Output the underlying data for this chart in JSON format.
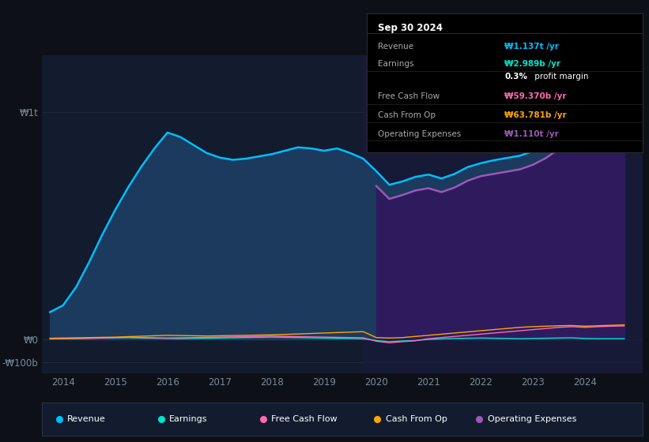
{
  "bg_color": "#0d1117",
  "plot_bg_color": "#131c2e",
  "title": "Sep 30 2024",
  "info_box": {
    "title": "Sep 30 2024",
    "rows": [
      {
        "label": "Revenue",
        "value": "₩1.137t /yr",
        "value_color": "#00bfff"
      },
      {
        "label": "Earnings",
        "value": "₩2.989b /yr",
        "value_color": "#00e5cc"
      },
      {
        "label": "",
        "value": "0.3% profit margin",
        "value_color": "#ffffff",
        "bold_part": "0.3%"
      },
      {
        "label": "Free Cash Flow",
        "value": "₩59.370b /yr",
        "value_color": "#ff69b4"
      },
      {
        "label": "Cash From Op",
        "value": "₩63.781b /yr",
        "value_color": "#ffa500"
      },
      {
        "label": "Operating Expenses",
        "value": "₩1.110t /yr",
        "value_color": "#9b59b6"
      }
    ]
  },
  "x_years": [
    2013.75,
    2014.0,
    2014.25,
    2014.5,
    2014.75,
    2015.0,
    2015.25,
    2015.5,
    2015.75,
    2016.0,
    2016.25,
    2016.5,
    2016.75,
    2017.0,
    2017.25,
    2017.5,
    2017.75,
    2018.0,
    2018.25,
    2018.5,
    2018.75,
    2019.0,
    2019.25,
    2019.5,
    2019.75,
    2020.0,
    2020.25,
    2020.5,
    2020.75,
    2021.0,
    2021.25,
    2021.5,
    2021.75,
    2022.0,
    2022.25,
    2022.5,
    2022.75,
    2023.0,
    2023.25,
    2023.5,
    2023.75,
    2024.0,
    2024.25,
    2024.5,
    2024.75
  ],
  "revenue": [
    120,
    150,
    230,
    340,
    460,
    570,
    670,
    760,
    840,
    910,
    890,
    855,
    820,
    800,
    790,
    795,
    805,
    815,
    830,
    845,
    840,
    830,
    840,
    820,
    795,
    740,
    680,
    695,
    715,
    725,
    708,
    728,
    758,
    775,
    788,
    798,
    808,
    828,
    858,
    898,
    948,
    998,
    1048,
    1100,
    1137
  ],
  "operating_expenses": [
    0,
    0,
    0,
    0,
    0,
    0,
    0,
    0,
    0,
    0,
    0,
    0,
    0,
    0,
    0,
    0,
    0,
    0,
    0,
    0,
    0,
    0,
    0,
    0,
    0,
    675,
    618,
    635,
    655,
    665,
    648,
    668,
    698,
    718,
    728,
    738,
    748,
    768,
    798,
    838,
    888,
    938,
    983,
    1028,
    1110
  ],
  "earnings": [
    4,
    3,
    4,
    5,
    6,
    7,
    8,
    6,
    5,
    4,
    3,
    4,
    5,
    6,
    7,
    8,
    9,
    10,
    9,
    8,
    7,
    6,
    5,
    4,
    3,
    -5,
    -10,
    -7,
    -5,
    0,
    2,
    4,
    5,
    6,
    5,
    4,
    3,
    4,
    5,
    6,
    7,
    4,
    3,
    3,
    3
  ],
  "free_cash_flow": [
    2,
    3,
    4,
    5,
    6,
    8,
    9,
    8,
    7,
    6,
    7,
    8,
    9,
    10,
    11,
    12,
    13,
    14,
    13,
    12,
    11,
    10,
    9,
    8,
    7,
    -8,
    -15,
    -10,
    -6,
    3,
    8,
    13,
    18,
    23,
    28,
    33,
    38,
    43,
    48,
    53,
    56,
    53,
    56,
    58,
    59
  ],
  "cash_from_op": [
    5,
    6,
    7,
    8,
    9,
    10,
    12,
    14,
    16,
    18,
    17,
    16,
    15,
    16,
    17,
    18,
    19,
    20,
    22,
    24,
    26,
    28,
    30,
    32,
    34,
    8,
    6,
    8,
    13,
    18,
    23,
    28,
    33,
    38,
    43,
    48,
    53,
    56,
    58,
    60,
    61,
    58,
    60,
    62,
    64
  ],
  "y_ticks_vals": [
    -100,
    0,
    1000
  ],
  "y_ticks_labels": [
    "-₩100b",
    "₩0",
    "₩1t"
  ],
  "ylim": [
    -150,
    1250
  ],
  "xlim_start": 2013.6,
  "xlim_end": 2025.1,
  "highlight_start": 2019.75,
  "revenue_color": "#00bfff",
  "revenue_fill": "#1b3a5e",
  "operating_expenses_color": "#9b59b6",
  "operating_expenses_fill": "#2d1b5e",
  "highlight_overlay": "#1a1a3a",
  "earnings_color": "#00e5cc",
  "free_cash_flow_color": "#ff69b4",
  "cash_from_op_color": "#ffa500",
  "grid_color": "#253040",
  "axis_label_color": "#7a8a9a",
  "legend_bg": "#131c2e",
  "legend_border": "#2a3a4a",
  "xticks": [
    2014,
    2015,
    2016,
    2017,
    2018,
    2019,
    2020,
    2021,
    2022,
    2023,
    2024
  ]
}
